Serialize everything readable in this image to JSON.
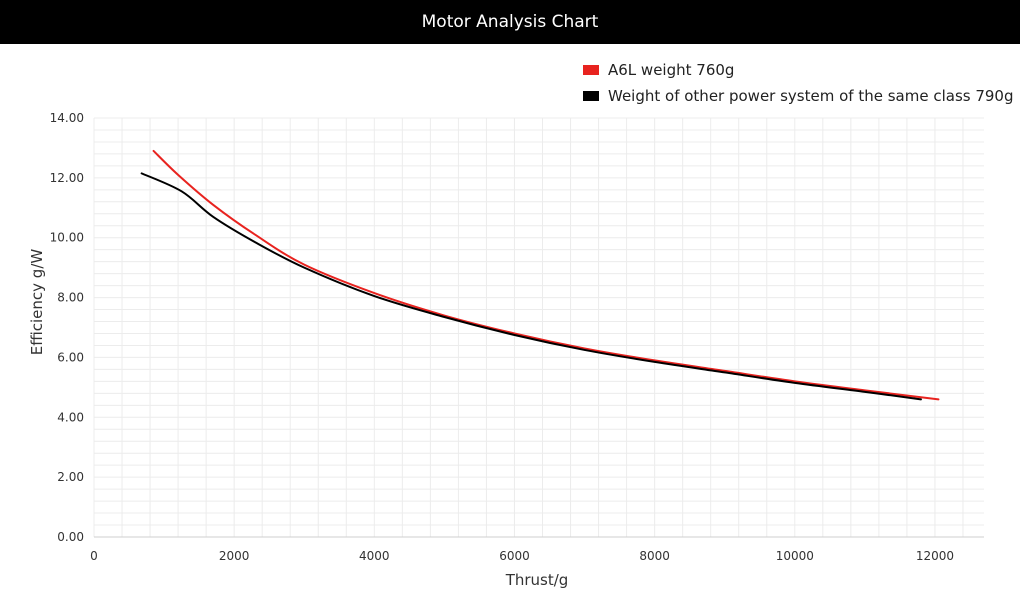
{
  "header": {
    "title": "Motor Analysis Chart"
  },
  "colors": {
    "header_bg": "#000000",
    "grid": "#ececec",
    "axis_text": "#333333"
  },
  "chart_data": {
    "type": "line",
    "title": "",
    "xlabel": "Thrust/g",
    "ylabel": "Efficiency g/W",
    "xlim": [
      0,
      12700
    ],
    "ylim": [
      0,
      14
    ],
    "x_ticks": [
      0,
      2000,
      4000,
      6000,
      8000,
      10000,
      12000
    ],
    "x_tick_labels": [
      "0",
      "2000",
      "4000",
      "6000",
      "8000",
      "10000",
      "12000"
    ],
    "y_ticks": [
      0,
      2,
      4,
      6,
      8,
      10,
      12,
      14
    ],
    "y_tick_labels": [
      "0.00",
      "2.00",
      "4.00",
      "6.00",
      "8.00",
      "10.00",
      "12.00",
      "14.00"
    ],
    "grid": true,
    "legend_position": "top-right",
    "series": [
      {
        "name": "A6L weight 760g",
        "color": "#e8231f",
        "x": [
          850,
          1200,
          1700,
          2300,
          3000,
          4000,
          5000,
          6000,
          7000,
          8000,
          9000,
          10000,
          11000,
          12050
        ],
        "y": [
          12.9,
          12.1,
          11.1,
          10.1,
          9.1,
          8.15,
          7.4,
          6.8,
          6.3,
          5.9,
          5.55,
          5.2,
          4.9,
          4.6
        ]
      },
      {
        "name": "Weight of other power system of the same class 790g",
        "color": "#000000",
        "x": [
          680,
          1250,
          1700,
          2300,
          3000,
          4000,
          5000,
          6000,
          7000,
          8000,
          9000,
          10000,
          11000,
          11800
        ],
        "y": [
          12.15,
          11.55,
          10.7,
          9.85,
          9.0,
          8.05,
          7.35,
          6.75,
          6.25,
          5.85,
          5.5,
          5.15,
          4.85,
          4.6
        ]
      }
    ]
  }
}
